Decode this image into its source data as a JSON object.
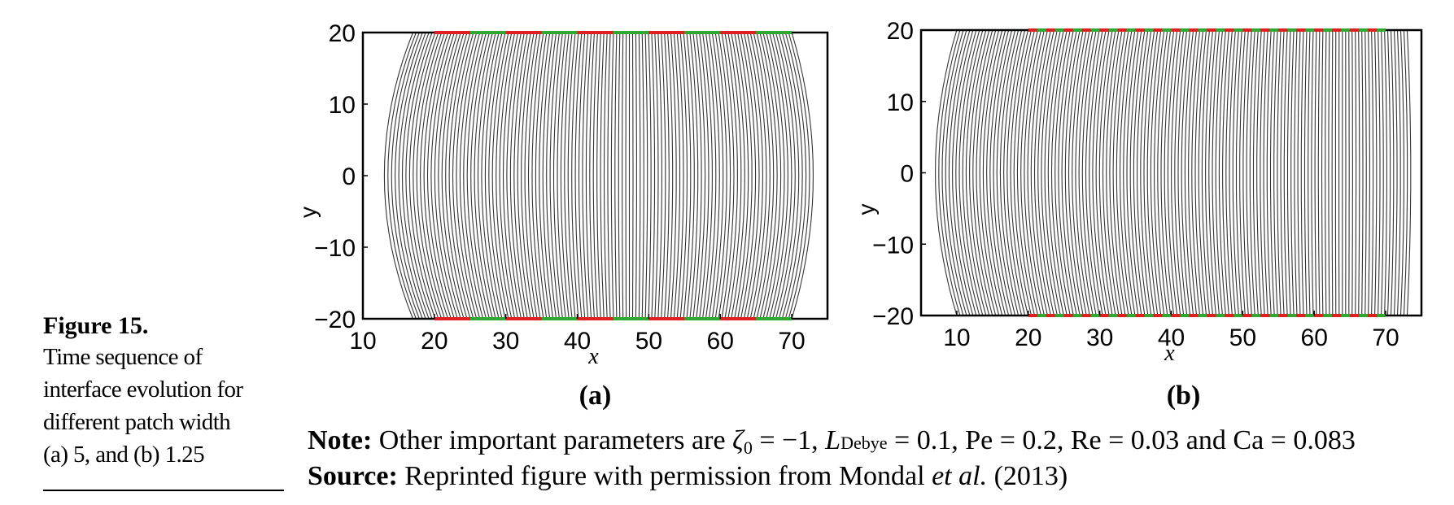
{
  "figure": {
    "title": "Figure 15.",
    "caption_lines": [
      "Time sequence of",
      "interface evolution for",
      "different patch width",
      "(a) 5, and (b) 1.25"
    ]
  },
  "note": {
    "label": "Note:",
    "text_before": " Other important parameters are ",
    "zeta": "ζ",
    "zeta_sub": "0",
    "text_mid1": " = −1, ",
    "L": "L",
    "L_sub": "Debye",
    "text_mid2": " = 0.1, Pe = 0.2, Re = 0.03 and Ca = 0.083"
  },
  "source": {
    "label": "Source:",
    "text": " Reprinted figure with permission from Mondal ",
    "etal": "et al.",
    "year": " (2013)"
  },
  "colors": {
    "hydrophilic": "#2ea82e",
    "hydrophobic": "#e02020",
    "interface": "#111111"
  },
  "chart_data": [
    {
      "type": "line",
      "panel_label": "(a)",
      "xlabel": "x",
      "ylabel": "y",
      "xlim": [
        10,
        75
      ],
      "ylim": [
        -20,
        20
      ],
      "xticks": [
        10,
        20,
        30,
        40,
        50,
        60,
        70
      ],
      "yticks": [
        -20,
        -10,
        0,
        10,
        20
      ],
      "xtick_labels": [
        "10",
        "20",
        "30",
        "40",
        "50",
        "60",
        "70"
      ],
      "ytick_labels": [
        "−20",
        "−10",
        "0",
        "10",
        "20"
      ],
      "grid": false,
      "patch_width": 5,
      "patches": [
        {
          "x0": 20,
          "x1": 25,
          "type": "hydrophobic"
        },
        {
          "x0": 25,
          "x1": 30,
          "type": "hydrophilic"
        },
        {
          "x0": 30,
          "x1": 35,
          "type": "hydrophobic"
        },
        {
          "x0": 35,
          "x1": 40,
          "type": "hydrophilic"
        },
        {
          "x0": 40,
          "x1": 45,
          "type": "hydrophobic"
        },
        {
          "x0": 45,
          "x1": 50,
          "type": "hydrophilic"
        },
        {
          "x0": 50,
          "x1": 55,
          "type": "hydrophobic"
        },
        {
          "x0": 55,
          "x1": 60,
          "type": "hydrophilic"
        },
        {
          "x0": 60,
          "x1": 65,
          "type": "hydrophobic"
        },
        {
          "x0": 65,
          "x1": 70,
          "type": "hydrophilic"
        }
      ],
      "interface_count": 120,
      "interface_start": {
        "x_wall": 17,
        "x_center": 13
      },
      "interface_end": {
        "x_wall": 70,
        "x_center": 73
      }
    },
    {
      "type": "line",
      "panel_label": "(b)",
      "xlabel": "x",
      "ylabel": "y",
      "xlim": [
        5,
        75
      ],
      "ylim": [
        -20,
        20
      ],
      "xticks": [
        10,
        20,
        30,
        40,
        50,
        60,
        70
      ],
      "yticks": [
        -20,
        -10,
        0,
        10,
        20
      ],
      "xtick_labels": [
        "10",
        "20",
        "30",
        "40",
        "50",
        "60",
        "70"
      ],
      "ytick_labels": [
        "−20",
        "−10",
        "0",
        "10",
        "20"
      ],
      "grid": false,
      "patch_width": 1.25,
      "patch_range": [
        20,
        70
      ],
      "interface_count": 140,
      "interface_start": {
        "x_wall": 10,
        "x_center": 7
      },
      "interface_end": {
        "x_wall": 73,
        "x_center": 73.5
      }
    }
  ]
}
